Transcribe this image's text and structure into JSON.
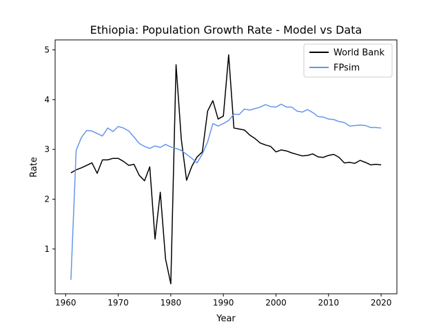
{
  "chart_data": {
    "type": "line",
    "title": "Ethiopia: Population Growth Rate - Model vs Data",
    "xlabel": "Year",
    "ylabel": "Rate",
    "xlim": [
      1958,
      2023
    ],
    "ylim": [
      0.1,
      5.2
    ],
    "xticks": [
      1960,
      1970,
      1980,
      1990,
      2000,
      2010,
      2020
    ],
    "yticks": [
      1,
      2,
      3,
      4,
      5
    ],
    "grid": false,
    "legend_position": "top-right",
    "series": [
      {
        "name": "World Bank",
        "color": "#000000",
        "x": [
          1961,
          1962,
          1963,
          1964,
          1965,
          1966,
          1967,
          1968,
          1969,
          1970,
          1971,
          1972,
          1973,
          1974,
          1975,
          1976,
          1977,
          1978,
          1979,
          1980,
          1981,
          1982,
          1983,
          1984,
          1985,
          1986,
          1987,
          1988,
          1989,
          1990,
          1991,
          1992,
          1993,
          1994,
          1995,
          1996,
          1997,
          1998,
          1999,
          2000,
          2001,
          2002,
          2003,
          2004,
          2005,
          2006,
          2007,
          2008,
          2009,
          2010,
          2011,
          2012,
          2013,
          2014,
          2015,
          2016,
          2017,
          2018,
          2019,
          2020
        ],
        "y": [
          2.53,
          2.59,
          2.63,
          2.68,
          2.73,
          2.52,
          2.79,
          2.79,
          2.82,
          2.82,
          2.76,
          2.68,
          2.7,
          2.48,
          2.37,
          2.65,
          1.2,
          2.14,
          0.8,
          0.3,
          4.7,
          3.2,
          2.38,
          2.66,
          2.85,
          2.95,
          3.77,
          3.98,
          3.61,
          3.67,
          4.9,
          3.43,
          3.41,
          3.39,
          3.29,
          3.22,
          3.13,
          3.09,
          3.06,
          2.95,
          2.99,
          2.97,
          2.93,
          2.9,
          2.87,
          2.88,
          2.91,
          2.85,
          2.84,
          2.88,
          2.9,
          2.84,
          2.73,
          2.74,
          2.72,
          2.78,
          2.74,
          2.69,
          2.7,
          2.69
        ]
      },
      {
        "name": "FPsim",
        "color": "#6495ED",
        "x": [
          1961,
          1962,
          1963,
          1964,
          1965,
          1966,
          1967,
          1968,
          1969,
          1970,
          1971,
          1972,
          1973,
          1974,
          1975,
          1976,
          1977,
          1978,
          1979,
          1980,
          1981,
          1982,
          1983,
          1984,
          1985,
          1986,
          1987,
          1988,
          1989,
          1990,
          1991,
          1992,
          1993,
          1994,
          1995,
          1996,
          1997,
          1998,
          1999,
          2000,
          2001,
          2002,
          2003,
          2004,
          2005,
          2006,
          2007,
          2008,
          2009,
          2010,
          2011,
          2012,
          2013,
          2014,
          2015,
          2016,
          2017,
          2018,
          2019,
          2020
        ],
        "y": [
          0.38,
          2.98,
          3.24,
          3.38,
          3.37,
          3.32,
          3.27,
          3.43,
          3.36,
          3.46,
          3.43,
          3.37,
          3.25,
          3.12,
          3.06,
          3.02,
          3.07,
          3.04,
          3.1,
          3.05,
          3.02,
          2.98,
          2.9,
          2.82,
          2.73,
          2.91,
          3.15,
          3.52,
          3.47,
          3.52,
          3.58,
          3.71,
          3.7,
          3.81,
          3.79,
          3.82,
          3.85,
          3.9,
          3.86,
          3.85,
          3.91,
          3.85,
          3.85,
          3.77,
          3.75,
          3.8,
          3.74,
          3.66,
          3.65,
          3.61,
          3.6,
          3.56,
          3.54,
          3.47,
          3.48,
          3.49,
          3.48,
          3.44,
          3.44,
          3.43
        ]
      }
    ]
  }
}
